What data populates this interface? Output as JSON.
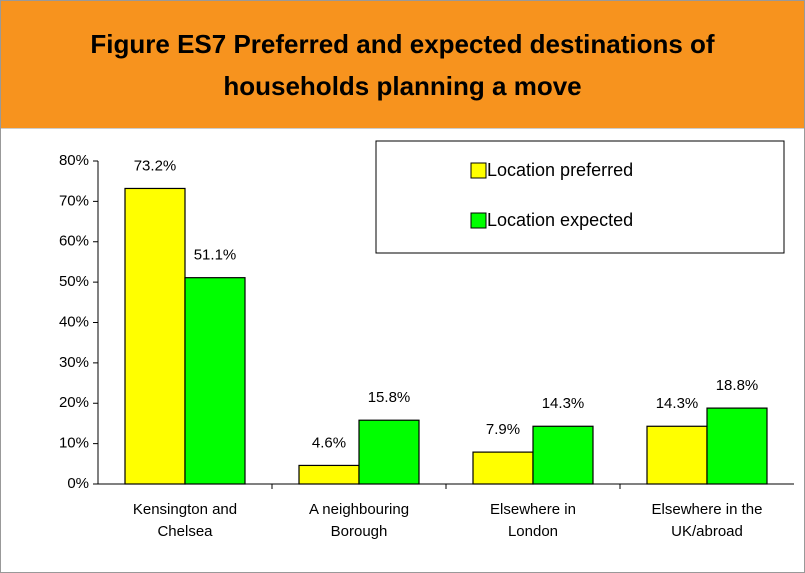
{
  "chart_data": {
    "type": "bar",
    "title": "Figure ES7 Preferred and expected destinations of households planning a move",
    "categories": [
      "Kensington and Chelsea",
      "A neighbouring Borough",
      "Elsewhere in London",
      "Elsewhere in the UK/abroad"
    ],
    "series": [
      {
        "name": "Location preferred",
        "color": "#ffff00",
        "values": [
          73.2,
          4.6,
          7.9,
          14.3
        ],
        "value_labels": [
          "73.2%",
          "4.6%",
          "7.9%",
          "14.3%"
        ]
      },
      {
        "name": "Location expected",
        "color": "#00ff00",
        "values": [
          51.1,
          15.8,
          14.3,
          18.8
        ],
        "value_labels": [
          "51.1%",
          "15.8%",
          "14.3%",
          "18.8%"
        ]
      }
    ],
    "ylim": [
      0,
      80
    ],
    "yticks": [
      {
        "value": 0,
        "label": "0%"
      },
      {
        "value": 10,
        "label": "10%"
      },
      {
        "value": 20,
        "label": "20%"
      },
      {
        "value": 30,
        "label": "30%"
      },
      {
        "value": 40,
        "label": "40%"
      },
      {
        "value": 50,
        "label": "50%"
      },
      {
        "value": 60,
        "label": "60%"
      },
      {
        "value": 70,
        "label": "70%"
      },
      {
        "value": 80,
        "label": "80%"
      }
    ],
    "grid": false,
    "legend": "top-right"
  }
}
